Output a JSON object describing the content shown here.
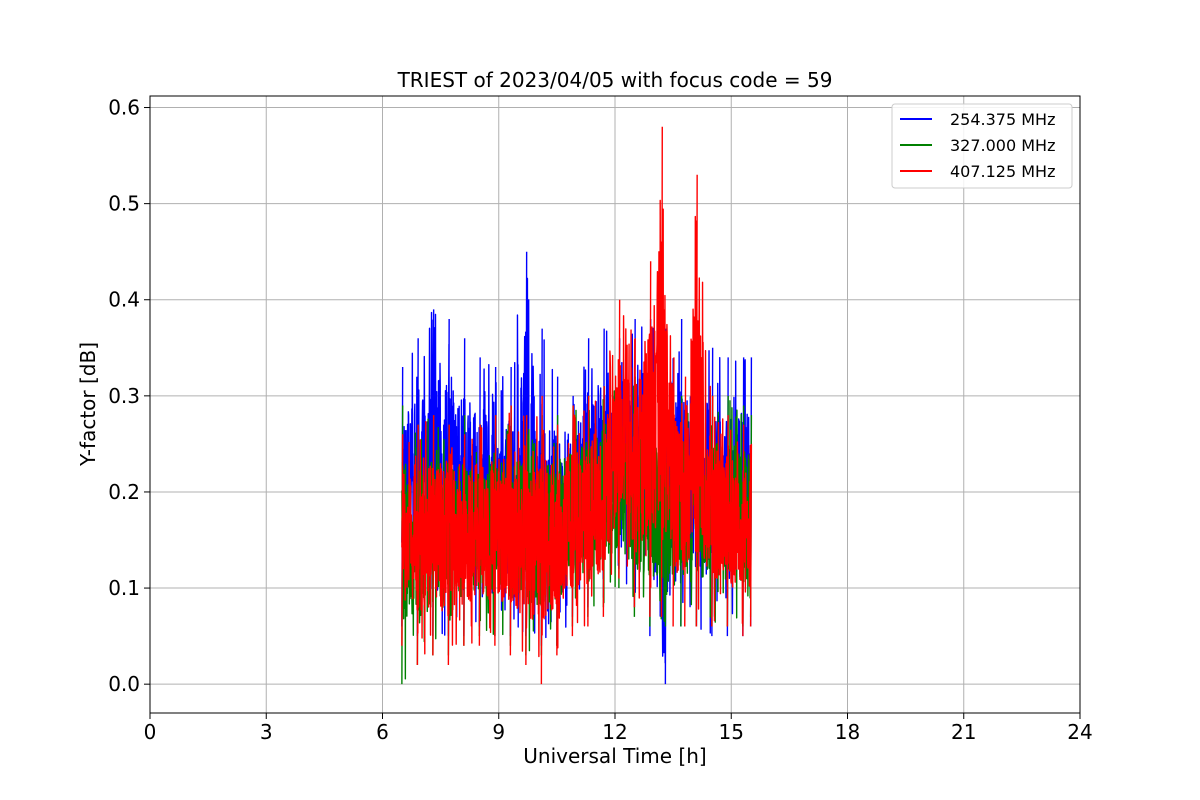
{
  "chart_data": {
    "type": "line",
    "title": "TRIEST of 2023/04/05 with focus code = 59",
    "xlabel": "Universal Time [h]",
    "ylabel": "Y-factor [dB]",
    "xlim": [
      0,
      24
    ],
    "ylim": [
      -0.03,
      0.612
    ],
    "xticks": [
      "0",
      "3",
      "6",
      "9",
      "12",
      "15",
      "18",
      "21",
      "24"
    ],
    "yticks": [
      "0.0",
      "0.1",
      "0.2",
      "0.3",
      "0.4",
      "0.5",
      "0.6"
    ],
    "grid": true,
    "legend_position": "top-right",
    "series": [
      {
        "name": "254.375 MHz",
        "color": "#0000ff",
        "x": [
          6.5,
          6.9,
          7.3,
          7.7,
          8.1,
          8.5,
          8.9,
          9.3,
          9.7,
          10.1,
          10.5,
          10.9,
          11.3,
          11.7,
          12.1,
          12.5,
          12.9,
          13.3,
          13.7,
          14.1,
          14.5,
          14.9,
          15.3,
          15.5
        ],
        "min": [
          0.06,
          0.05,
          0.05,
          0.05,
          0.05,
          0.06,
          0.05,
          0.05,
          0.05,
          0.04,
          0.04,
          0.07,
          0.08,
          0.09,
          0.12,
          0.08,
          0.05,
          0.0,
          0.06,
          0.06,
          0.05,
          0.05,
          0.05,
          0.06
        ],
        "max": [
          0.33,
          0.36,
          0.39,
          0.38,
          0.36,
          0.34,
          0.33,
          0.33,
          0.45,
          0.37,
          0.32,
          0.3,
          0.36,
          0.37,
          0.36,
          0.38,
          0.38,
          0.37,
          0.38,
          0.37,
          0.35,
          0.34,
          0.34,
          0.34
        ]
      },
      {
        "name": "327.000 MHz",
        "color": "#008000",
        "x": [
          6.5,
          6.9,
          7.3,
          7.7,
          8.1,
          8.5,
          8.9,
          9.3,
          9.7,
          10.1,
          10.5,
          10.9,
          11.3,
          11.7,
          12.1,
          12.5,
          12.9,
          13.3,
          13.7,
          14.1,
          14.5,
          14.9,
          15.3,
          15.5
        ],
        "min": [
          0.0,
          0.02,
          0.03,
          0.03,
          0.04,
          0.05,
          0.05,
          0.04,
          0.03,
          0.03,
          0.04,
          0.06,
          0.07,
          0.08,
          0.1,
          0.07,
          0.06,
          0.06,
          0.06,
          0.06,
          0.06,
          0.06,
          0.06,
          0.07
        ],
        "max": [
          0.29,
          0.27,
          0.28,
          0.27,
          0.28,
          0.27,
          0.28,
          0.29,
          0.28,
          0.28,
          0.28,
          0.29,
          0.3,
          0.31,
          0.32,
          0.32,
          0.3,
          0.29,
          0.3,
          0.3,
          0.3,
          0.3,
          0.29,
          0.28
        ]
      },
      {
        "name": "407.125 MHz",
        "color": "#ff0000",
        "x": [
          6.5,
          6.9,
          7.3,
          7.7,
          8.1,
          8.5,
          8.9,
          9.3,
          9.7,
          10.1,
          10.5,
          10.9,
          11.3,
          11.7,
          12.1,
          12.5,
          12.9,
          13.2,
          13.5,
          13.8,
          14.1,
          14.5,
          14.9,
          15.3,
          15.5
        ],
        "min": [
          0.04,
          0.02,
          0.03,
          0.02,
          0.04,
          0.04,
          0.04,
          0.03,
          0.02,
          0.0,
          0.03,
          0.05,
          0.06,
          0.07,
          0.11,
          0.08,
          0.07,
          0.07,
          0.06,
          0.06,
          0.06,
          0.06,
          0.06,
          0.05,
          0.06
        ],
        "max": [
          0.26,
          0.27,
          0.28,
          0.27,
          0.26,
          0.27,
          0.28,
          0.29,
          0.28,
          0.3,
          0.27,
          0.29,
          0.3,
          0.31,
          0.4,
          0.36,
          0.44,
          0.58,
          0.34,
          0.32,
          0.53,
          0.3,
          0.28,
          0.27,
          0.25
        ]
      }
    ]
  }
}
